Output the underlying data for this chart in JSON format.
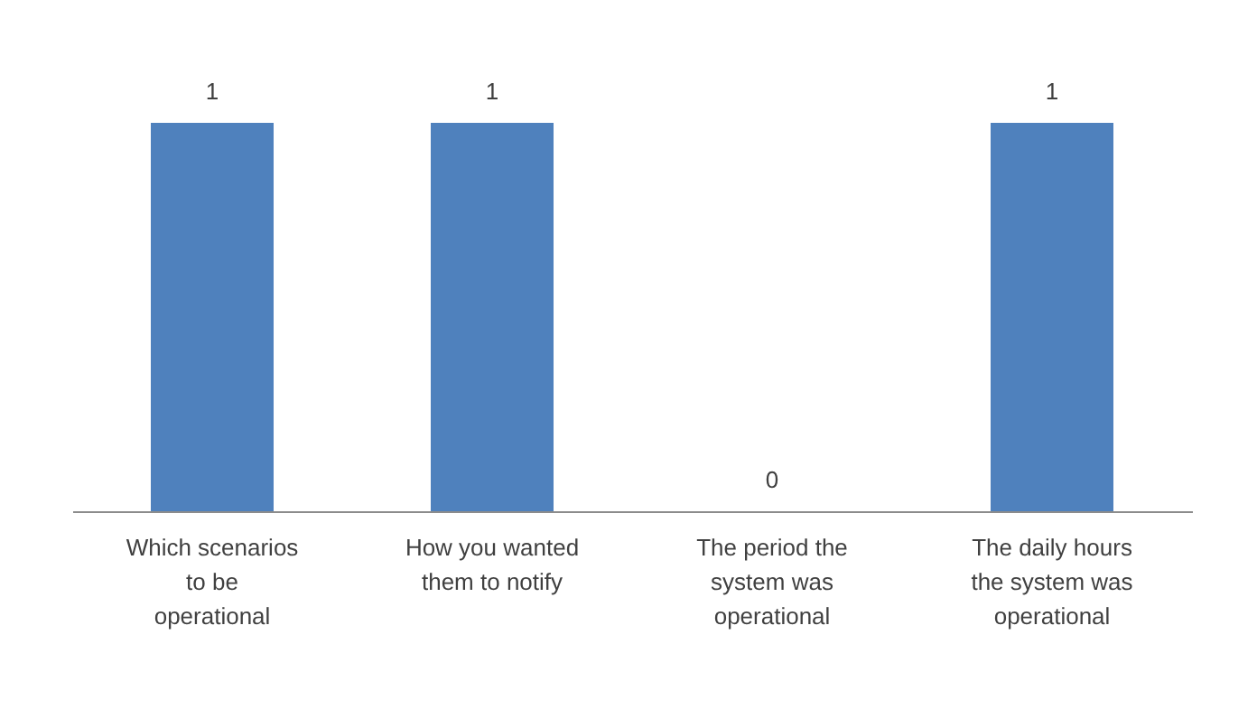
{
  "chart_data": {
    "type": "bar",
    "categories": [
      "Which scenarios to be operational",
      "How you wanted them to notify",
      "The period the system was operational",
      "The daily hours the system was operational"
    ],
    "values": [
      1,
      1,
      0,
      1
    ],
    "color": "#4f81bd",
    "data_labels": true
  }
}
